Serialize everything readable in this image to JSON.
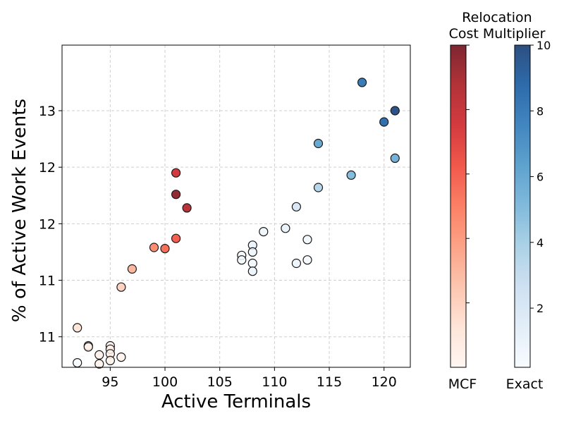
{
  "chart_data": {
    "type": "scatter",
    "title": "",
    "xlabel": "Active Terminals",
    "ylabel": "% of Active Work Events",
    "xlim": [
      90.6,
      122.4
    ],
    "ylim": [
      10.63,
      13.48
    ],
    "x_ticks": [
      95,
      100,
      105,
      110,
      115,
      120
    ],
    "y_ticks": [
      {
        "value": 10.9,
        "label": "11"
      },
      {
        "value": 11.4,
        "label": "11"
      },
      {
        "value": 11.9,
        "label": "12"
      },
      {
        "value": 12.4,
        "label": "12"
      },
      {
        "value": 12.9,
        "label": "13"
      }
    ],
    "grid": true,
    "colorbar_title": "Relocation\nCost Multiplier",
    "colorbars": [
      {
        "name": "MCF",
        "cmap": "Reds",
        "range": [
          0,
          10
        ],
        "ticks": [],
        "color_low": "#fff5f0",
        "color_high": "#67000d"
      },
      {
        "name": "Exact",
        "cmap": "Blues",
        "range": [
          0.2,
          10
        ],
        "ticks": [
          2,
          4,
          6,
          8,
          10
        ],
        "color_low": "#f7fbff",
        "color_high": "#08306b"
      }
    ],
    "series": [
      {
        "name": "MCF",
        "points": [
          {
            "x": 92,
            "y": 10.98,
            "c": 1.2
          },
          {
            "x": 93,
            "y": 10.82,
            "c": 0.2
          },
          {
            "x": 93,
            "y": 10.81,
            "c": 0.3
          },
          {
            "x": 94,
            "y": 10.74,
            "c": 0.3
          },
          {
            "x": 94,
            "y": 10.66,
            "c": 0.2
          },
          {
            "x": 95,
            "y": 10.82,
            "c": 0.2
          },
          {
            "x": 95,
            "y": 10.79,
            "c": 0.3
          },
          {
            "x": 95,
            "y": 10.75,
            "c": 0.3
          },
          {
            "x": 95,
            "y": 10.69,
            "c": 0.2
          },
          {
            "x": 96,
            "y": 10.72,
            "c": 0.2
          },
          {
            "x": 96,
            "y": 11.34,
            "c": 2.0
          },
          {
            "x": 97,
            "y": 11.5,
            "c": 3.0
          },
          {
            "x": 99,
            "y": 11.69,
            "c": 4.5
          },
          {
            "x": 100,
            "y": 11.68,
            "c": 5.5
          },
          {
            "x": 101,
            "y": 11.77,
            "c": 6.0
          },
          {
            "x": 102,
            "y": 12.04,
            "c": 8.5
          },
          {
            "x": 101,
            "y": 12.16,
            "c": 9.5
          },
          {
            "x": 101,
            "y": 12.35,
            "c": 7.5
          }
        ]
      },
      {
        "name": "Exact",
        "points": [
          {
            "x": 92,
            "y": 10.67,
            "c": 0.2
          },
          {
            "x": 107,
            "y": 11.62,
            "c": 0.4
          },
          {
            "x": 107,
            "y": 11.58,
            "c": 0.3
          },
          {
            "x": 108,
            "y": 11.71,
            "c": 1.0
          },
          {
            "x": 108,
            "y": 11.65,
            "c": 0.6
          },
          {
            "x": 108,
            "y": 11.55,
            "c": 0.5
          },
          {
            "x": 108,
            "y": 11.48,
            "c": 0.8
          },
          {
            "x": 109,
            "y": 11.83,
            "c": 0.7
          },
          {
            "x": 111,
            "y": 11.86,
            "c": 1.0
          },
          {
            "x": 112,
            "y": 12.05,
            "c": 2.0
          },
          {
            "x": 112,
            "y": 11.55,
            "c": 0.8
          },
          {
            "x": 113,
            "y": 11.76,
            "c": 0.5
          },
          {
            "x": 113,
            "y": 11.58,
            "c": 0.4
          },
          {
            "x": 114,
            "y": 12.22,
            "c": 3.5
          },
          {
            "x": 114,
            "y": 12.61,
            "c": 6.0
          },
          {
            "x": 117,
            "y": 12.33,
            "c": 5.0
          },
          {
            "x": 118,
            "y": 13.15,
            "c": 8.0
          },
          {
            "x": 120,
            "y": 12.8,
            "c": 8.5
          },
          {
            "x": 121,
            "y": 12.9,
            "c": 9.8
          },
          {
            "x": 121,
            "y": 12.48,
            "c": 5.5
          }
        ]
      }
    ]
  }
}
